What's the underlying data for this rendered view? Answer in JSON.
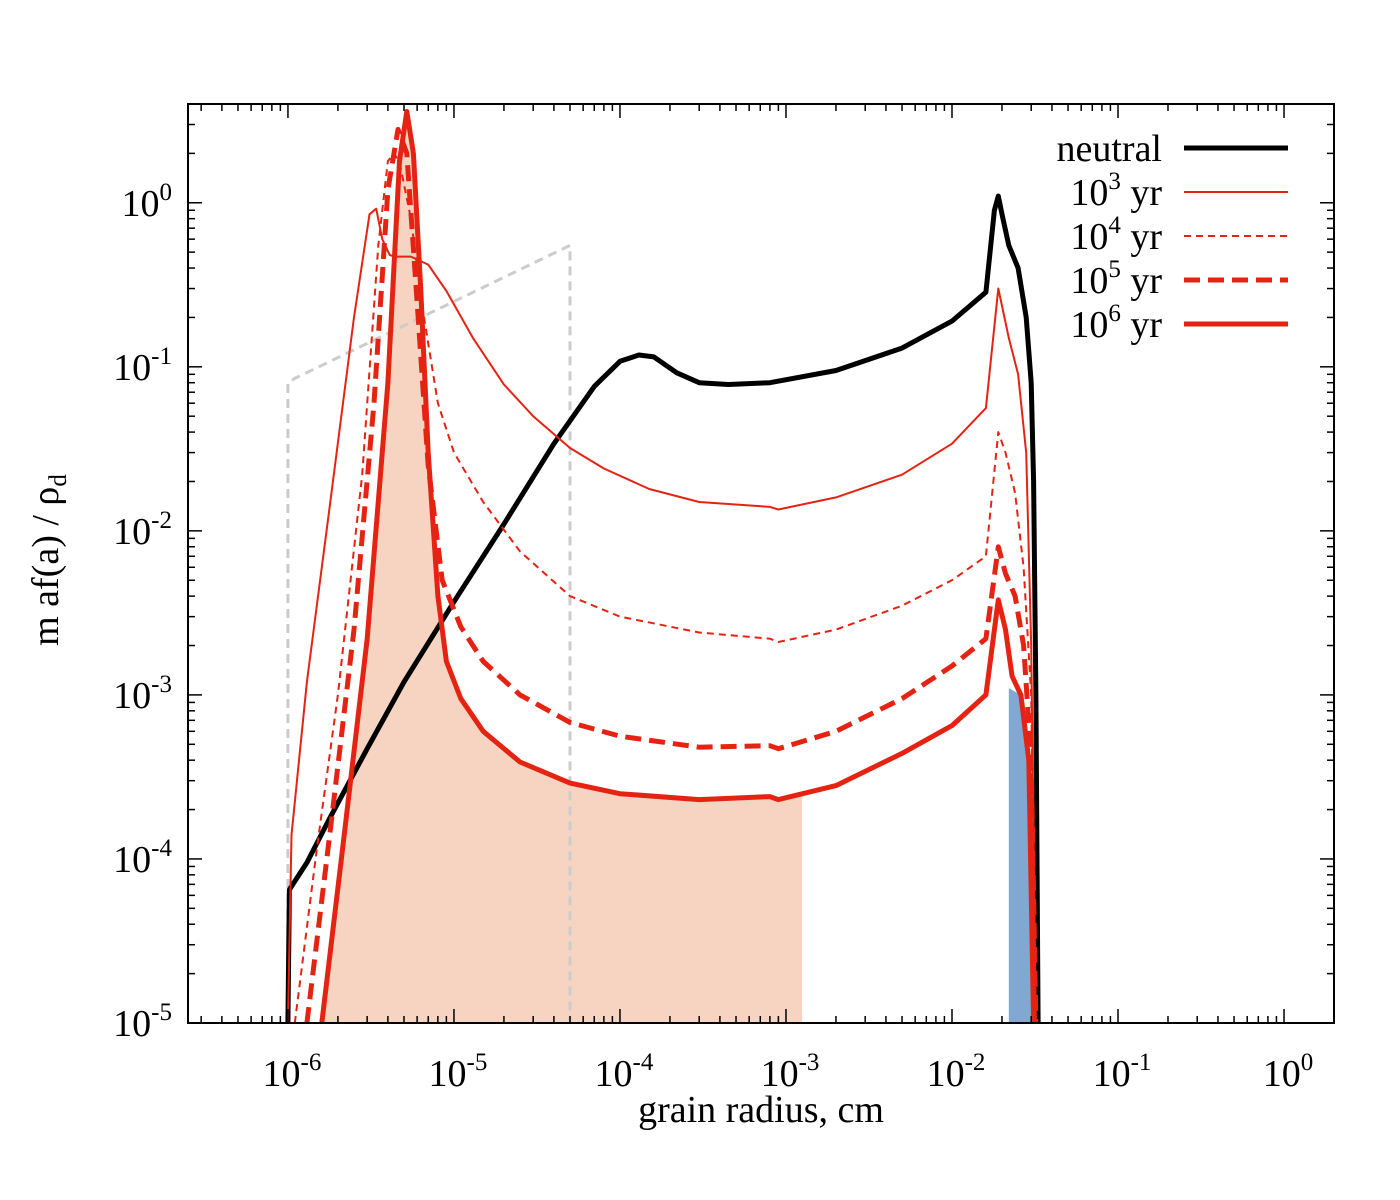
{
  "chart_data": {
    "type": "line",
    "xlabel": "grain radius, cm",
    "ylabel": "m af(a) / ρ",
    "ylabel_sub": "d",
    "x_scale": "log",
    "y_scale": "log",
    "xlim": [
      2.5e-07,
      2.0
    ],
    "ylim": [
      1e-05,
      4
    ],
    "x_ticks": [
      {
        "value": 1e-06,
        "base": "10",
        "exp": "-6"
      },
      {
        "value": 1e-05,
        "base": "10",
        "exp": "-5"
      },
      {
        "value": 0.0001,
        "base": "10",
        "exp": "-4"
      },
      {
        "value": 0.001,
        "base": "10",
        "exp": "-3"
      },
      {
        "value": 0.01,
        "base": "10",
        "exp": "-2"
      },
      {
        "value": 0.1,
        "base": "10",
        "exp": "-1"
      },
      {
        "value": 1,
        "base": "10",
        "exp": "0"
      }
    ],
    "y_ticks": [
      {
        "value": 1e-05,
        "base": "10",
        "exp": "-5"
      },
      {
        "value": 0.0001,
        "base": "10",
        "exp": "-4"
      },
      {
        "value": 0.001,
        "base": "10",
        "exp": "-3"
      },
      {
        "value": 0.01,
        "base": "10",
        "exp": "-2"
      },
      {
        "value": 0.1,
        "base": "10",
        "exp": "-1"
      },
      {
        "value": 1,
        "base": "10",
        "exp": "0"
      }
    ],
    "legend_position": "top-right",
    "series": [
      {
        "name": "neutral",
        "color": "#000000",
        "style": "thick-solid",
        "in_legend": true,
        "points": [
          [
            1e-06,
            1e-05
          ],
          [
            1.02e-06,
            6.5e-05
          ],
          [
            1.3e-06,
            9.5e-05
          ],
          [
            1.8e-06,
            0.00018
          ],
          [
            3e-06,
            0.00047
          ],
          [
            5e-06,
            0.0012
          ],
          [
            1e-05,
            0.0037
          ],
          [
            2e-05,
            0.011
          ],
          [
            4e-05,
            0.034
          ],
          [
            7e-05,
            0.076
          ],
          [
            0.0001,
            0.108
          ],
          [
            0.00013,
            0.118
          ],
          [
            0.00016,
            0.115
          ],
          [
            0.00022,
            0.092
          ],
          [
            0.0003,
            0.08
          ],
          [
            0.00045,
            0.078
          ],
          [
            0.0008,
            0.08
          ],
          [
            0.002,
            0.095
          ],
          [
            0.005,
            0.13
          ],
          [
            0.01,
            0.19
          ],
          [
            0.016,
            0.285
          ],
          [
            0.018,
            0.9
          ],
          [
            0.019,
            1.1
          ],
          [
            0.02,
            0.85
          ],
          [
            0.022,
            0.55
          ],
          [
            0.025,
            0.4
          ],
          [
            0.028,
            0.2
          ],
          [
            0.03,
            0.08
          ],
          [
            0.031,
            0.02
          ],
          [
            0.032,
            0.001
          ],
          [
            0.033,
            1e-05
          ]
        ]
      },
      {
        "name": "10^3 yr",
        "color": "#e42313",
        "style": "thin-solid",
        "in_legend": true,
        "points": [
          [
            1e-06,
            1e-05
          ],
          [
            1.05e-06,
            0.00014
          ],
          [
            1.3e-06,
            0.0012
          ],
          [
            1.8e-06,
            0.015
          ],
          [
            2.5e-06,
            0.2
          ],
          [
            3.1e-06,
            0.85
          ],
          [
            3.4e-06,
            0.92
          ],
          [
            3.7e-06,
            0.6
          ],
          [
            4.1e-06,
            0.48
          ],
          [
            4.5e-06,
            0.47
          ],
          [
            5.5e-06,
            0.47
          ],
          [
            7e-06,
            0.42
          ],
          [
            9e-06,
            0.29
          ],
          [
            1.3e-05,
            0.15
          ],
          [
            2e-05,
            0.078
          ],
          [
            3e-05,
            0.05
          ],
          [
            5e-05,
            0.032
          ],
          [
            8e-05,
            0.024
          ],
          [
            0.00015,
            0.018
          ],
          [
            0.0003,
            0.015
          ],
          [
            0.0008,
            0.014
          ],
          [
            0.0009,
            0.0135
          ],
          [
            0.002,
            0.016
          ],
          [
            0.005,
            0.022
          ],
          [
            0.01,
            0.034
          ],
          [
            0.016,
            0.056
          ],
          [
            0.019,
            0.3
          ],
          [
            0.022,
            0.15
          ],
          [
            0.025,
            0.09
          ],
          [
            0.028,
            0.03
          ],
          [
            0.03,
            0.002
          ],
          [
            0.032,
            1e-05
          ]
        ]
      },
      {
        "name": "10^4 yr",
        "color": "#e42313",
        "style": "thin-dashed",
        "in_legend": true,
        "points": [
          [
            1.1e-06,
            1e-05
          ],
          [
            1.5e-06,
            0.00012
          ],
          [
            2e-06,
            0.001
          ],
          [
            2.8e-06,
            0.022
          ],
          [
            3.5e-06,
            0.55
          ],
          [
            4e-06,
            1.8
          ],
          [
            4.4e-06,
            2.0
          ],
          [
            4.8e-06,
            1.6
          ],
          [
            5.5e-06,
            0.8
          ],
          [
            6.5e-06,
            0.22
          ],
          [
            8e-06,
            0.06
          ],
          [
            1e-05,
            0.03
          ],
          [
            1.5e-05,
            0.015
          ],
          [
            2.5e-05,
            0.0075
          ],
          [
            5e-05,
            0.004
          ],
          [
            0.0001,
            0.003
          ],
          [
            0.0003,
            0.0024
          ],
          [
            0.0008,
            0.0022
          ],
          [
            0.0009,
            0.0021
          ],
          [
            0.002,
            0.0025
          ],
          [
            0.005,
            0.0035
          ],
          [
            0.01,
            0.005
          ],
          [
            0.016,
            0.007
          ],
          [
            0.019,
            0.04
          ],
          [
            0.021,
            0.03
          ],
          [
            0.024,
            0.017
          ],
          [
            0.027,
            0.006
          ],
          [
            0.03,
            0.001
          ],
          [
            0.032,
            1e-05
          ]
        ]
      },
      {
        "name": "10^5 yr",
        "color": "#e42313",
        "style": "thick-dashed",
        "in_legend": true,
        "points": [
          [
            1.3e-06,
            1e-05
          ],
          [
            1.8e-06,
            0.00015
          ],
          [
            2.5e-06,
            0.0025
          ],
          [
            3.3e-06,
            0.06
          ],
          [
            4e-06,
            1.2
          ],
          [
            4.6e-06,
            2.8
          ],
          [
            5.2e-06,
            2.0
          ],
          [
            6e-06,
            0.25
          ],
          [
            7e-06,
            0.025
          ],
          [
            8.5e-06,
            0.005
          ],
          [
            1.1e-05,
            0.0026
          ],
          [
            1.5e-05,
            0.0016
          ],
          [
            2.5e-05,
            0.001
          ],
          [
            5e-05,
            0.00068
          ],
          [
            0.0001,
            0.00056
          ],
          [
            0.0003,
            0.00048
          ],
          [
            0.0008,
            0.00049
          ],
          [
            0.0009,
            0.00047
          ],
          [
            0.002,
            0.0006
          ],
          [
            0.005,
            0.00095
          ],
          [
            0.01,
            0.0015
          ],
          [
            0.016,
            0.0022
          ],
          [
            0.019,
            0.008
          ],
          [
            0.021,
            0.0055
          ],
          [
            0.024,
            0.004
          ],
          [
            0.027,
            0.002
          ],
          [
            0.03,
            0.0004
          ],
          [
            0.032,
            1e-05
          ]
        ]
      },
      {
        "name": "10^6 yr",
        "color": "#e42313",
        "style": "thick-solid",
        "in_legend": true,
        "points": [
          [
            1.6e-06,
            1e-05
          ],
          [
            2.2e-06,
            0.00015
          ],
          [
            3e-06,
            0.0022
          ],
          [
            4e-06,
            0.08
          ],
          [
            4.7e-06,
            1.8
          ],
          [
            5.2e-06,
            3.6
          ],
          [
            5.7e-06,
            2.0
          ],
          [
            6.3e-06,
            0.3
          ],
          [
            7e-06,
            0.03
          ],
          [
            8e-06,
            0.004
          ],
          [
            9e-06,
            0.0016
          ],
          [
            1.1e-05,
            0.00095
          ],
          [
            1.5e-05,
            0.0006
          ],
          [
            2.5e-05,
            0.00039
          ],
          [
            5e-05,
            0.00029
          ],
          [
            0.0001,
            0.00025
          ],
          [
            0.0003,
            0.00023
          ],
          [
            0.0008,
            0.00024
          ],
          [
            0.0009,
            0.00023
          ],
          [
            0.002,
            0.00028
          ],
          [
            0.005,
            0.00044
          ],
          [
            0.01,
            0.00065
          ],
          [
            0.016,
            0.001
          ],
          [
            0.019,
            0.0038
          ],
          [
            0.021,
            0.0025
          ],
          [
            0.023,
            0.0013
          ],
          [
            0.026,
            0.001
          ],
          [
            0.029,
            0.0004
          ],
          [
            0.031,
            1e-05
          ]
        ]
      },
      {
        "name": "",
        "color": "#cccccc",
        "style": "gray-dashed",
        "in_legend": false,
        "points": [
          [
            1e-06,
            1e-05
          ],
          [
            1e-06,
            0.08
          ],
          [
            1.1e-06,
            0.085
          ],
          [
            5e-05,
            0.55
          ],
          [
            5e-05,
            1e-05
          ]
        ]
      }
    ],
    "shaded_regions": [
      {
        "color": "#f7d3c1",
        "points": [
          [
            1.6e-06,
            1e-05
          ],
          [
            2.2e-06,
            0.00015
          ],
          [
            3e-06,
            0.0022
          ],
          [
            4e-06,
            0.08
          ],
          [
            4.7e-06,
            1.8
          ],
          [
            5.2e-06,
            3.6
          ],
          [
            5.7e-06,
            2.0
          ],
          [
            6.3e-06,
            0.3
          ],
          [
            7e-06,
            0.03
          ],
          [
            8e-06,
            0.004
          ],
          [
            9e-06,
            0.0016
          ],
          [
            1.1e-05,
            0.00095
          ],
          [
            1.5e-05,
            0.0006
          ],
          [
            2.5e-05,
            0.00039
          ],
          [
            5e-05,
            0.00029
          ],
          [
            0.0001,
            0.00025
          ],
          [
            0.0003,
            0.00023
          ],
          [
            0.0008,
            0.00024
          ],
          [
            0.0009,
            0.00023
          ],
          [
            0.00125,
            0.00025
          ],
          [
            0.00125,
            1e-05
          ]
        ]
      },
      {
        "color": "#80a8d0",
        "points": [
          [
            0.022,
            1e-05
          ],
          [
            0.022,
            0.0011
          ],
          [
            0.026,
            0.001
          ],
          [
            0.029,
            0.0004
          ],
          [
            0.031,
            1e-05
          ]
        ]
      }
    ]
  }
}
